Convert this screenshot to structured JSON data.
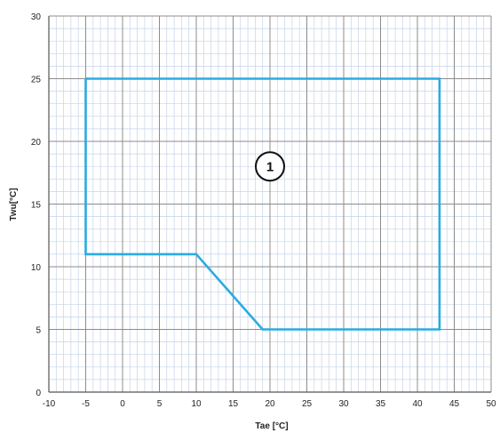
{
  "chart_data": {
    "type": "line",
    "title": "",
    "xlabel": "Tae [°C]",
    "ylabel": "Twu[°C]",
    "xlim": [
      -10,
      50
    ],
    "ylim": [
      0,
      30
    ],
    "x_ticks": [
      "-10",
      "-5",
      "0",
      "5",
      "10",
      "15",
      "20",
      "25",
      "30",
      "35",
      "40",
      "45",
      "50"
    ],
    "y_ticks": [
      "0",
      "5",
      "10",
      "15",
      "20",
      "25",
      "30"
    ],
    "grid": true,
    "minor_grid": true,
    "series": [
      {
        "color": "#29abe2",
        "closed": true,
        "x": [
          -5,
          43,
          43,
          19,
          10,
          -5,
          -5
        ],
        "y": [
          25,
          25,
          5,
          5,
          11,
          11,
          25
        ]
      }
    ],
    "annotations": [
      {
        "text": "1",
        "x": 20,
        "y": 18,
        "shape": "circle"
      }
    ]
  }
}
